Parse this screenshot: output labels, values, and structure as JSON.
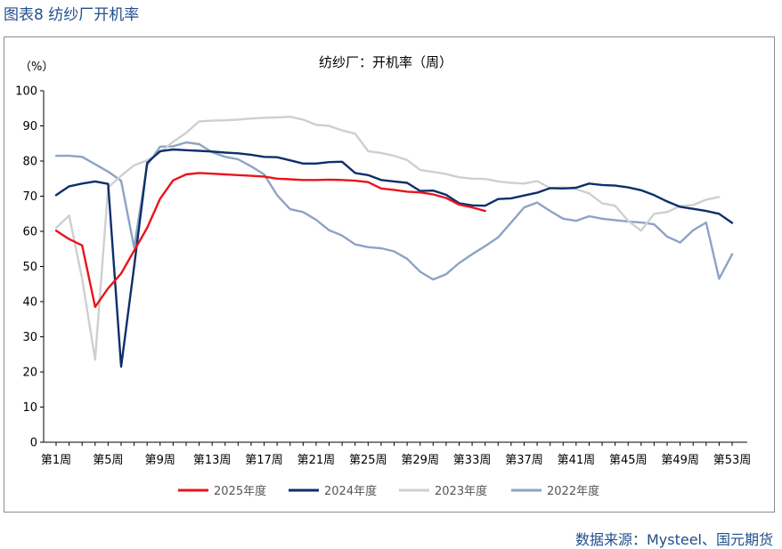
{
  "figure_title": "图表8 纺纱厂开机率",
  "source": "数据来源：Mysteel、国元期货",
  "colors": {
    "2025": "#e8141b",
    "2024": "#0d2f6b",
    "2023": "#cfcfcf",
    "2022": "#8ea3c4",
    "title_blue": "#1f4e8c"
  },
  "chart_data": {
    "type": "line",
    "title": "纺纱厂：开机率（周）",
    "ylabel": "（%）",
    "ylim": [
      0,
      100
    ],
    "yticks": [
      0,
      10,
      20,
      30,
      40,
      50,
      60,
      70,
      80,
      90,
      100
    ],
    "xlim": [
      1,
      53
    ],
    "xtick_labels": [
      "第1周",
      "第5周",
      "第9周",
      "第13周",
      "第17周",
      "第21周",
      "第25周",
      "第29周",
      "第33周",
      "第37周",
      "第41周",
      "第45周",
      "第49周",
      "第53周"
    ],
    "legend_position": "bottom",
    "grid": false,
    "series": [
      {
        "name": "2025年度",
        "color": "#e8141b",
        "values": [
          60.2,
          57.8,
          56.0,
          38.5,
          43.8,
          48.0,
          54.5,
          61.0,
          69.3,
          74.5,
          76.2,
          76.6,
          76.4,
          76.2,
          76.0,
          75.8,
          75.6,
          75.0,
          74.8,
          74.6,
          74.6,
          74.7,
          74.6,
          74.4,
          74.0,
          72.2,
          71.8,
          71.3,
          71.1,
          70.5,
          69.5,
          67.6,
          66.8,
          65.8
        ]
      },
      {
        "name": "2024年度",
        "color": "#0d2f6b",
        "values": [
          70.3,
          72.8,
          73.6,
          74.2,
          73.5,
          21.5,
          50.0,
          79.5,
          82.8,
          83.3,
          83.1,
          82.9,
          82.7,
          82.4,
          82.2,
          81.8,
          81.2,
          81.1,
          80.2,
          79.3,
          79.3,
          79.7,
          79.8,
          76.6,
          76.0,
          74.6,
          74.2,
          73.8,
          71.5,
          71.6,
          70.4,
          68.0,
          67.4,
          67.3,
          69.2,
          69.4,
          70.2,
          71.0,
          72.3,
          72.2,
          72.4,
          73.6,
          73.2,
          73.0,
          72.5,
          71.7,
          70.3,
          68.5,
          67.0,
          66.4,
          65.8,
          65.0,
          62.4
        ]
      },
      {
        "name": "2023年度",
        "color": "#cfcfcf",
        "values": [
          61.0,
          64.5,
          46.5,
          23.5,
          72.5,
          75.8,
          78.8,
          80.2,
          82.5,
          85.5,
          88.0,
          91.3,
          91.5,
          91.6,
          91.8,
          92.1,
          92.3,
          92.4,
          92.6,
          91.8,
          90.3,
          90.0,
          88.7,
          87.8,
          82.8,
          82.3,
          81.5,
          80.3,
          77.5,
          76.9,
          76.3,
          75.4,
          75.0,
          74.9,
          74.2,
          73.8,
          73.6,
          74.3,
          72.3,
          72.5,
          72.0,
          70.8,
          68.0,
          67.3,
          63.0,
          60.2,
          65.0,
          65.5,
          67.2,
          67.5,
          69.0,
          69.8
        ]
      },
      {
        "name": "2022年度",
        "color": "#8ea3c4",
        "values": [
          81.5,
          81.5,
          81.2,
          79.1,
          77.0,
          74.4,
          55.4,
          78.8,
          84.1,
          84.2,
          85.3,
          84.8,
          82.5,
          81.2,
          80.5,
          78.5,
          76.2,
          70.3,
          66.3,
          65.5,
          63.3,
          60.3,
          58.8,
          56.3,
          55.5,
          55.2,
          54.3,
          52.2,
          48.5,
          46.3,
          47.8,
          51.0,
          53.5,
          55.8,
          58.3,
          62.5,
          66.8,
          68.2,
          65.8,
          63.6,
          63.0,
          64.3,
          63.6,
          63.2,
          62.8,
          62.5,
          62.0,
          58.5,
          56.8,
          60.3,
          62.5,
          46.5,
          53.5
        ]
      }
    ]
  }
}
